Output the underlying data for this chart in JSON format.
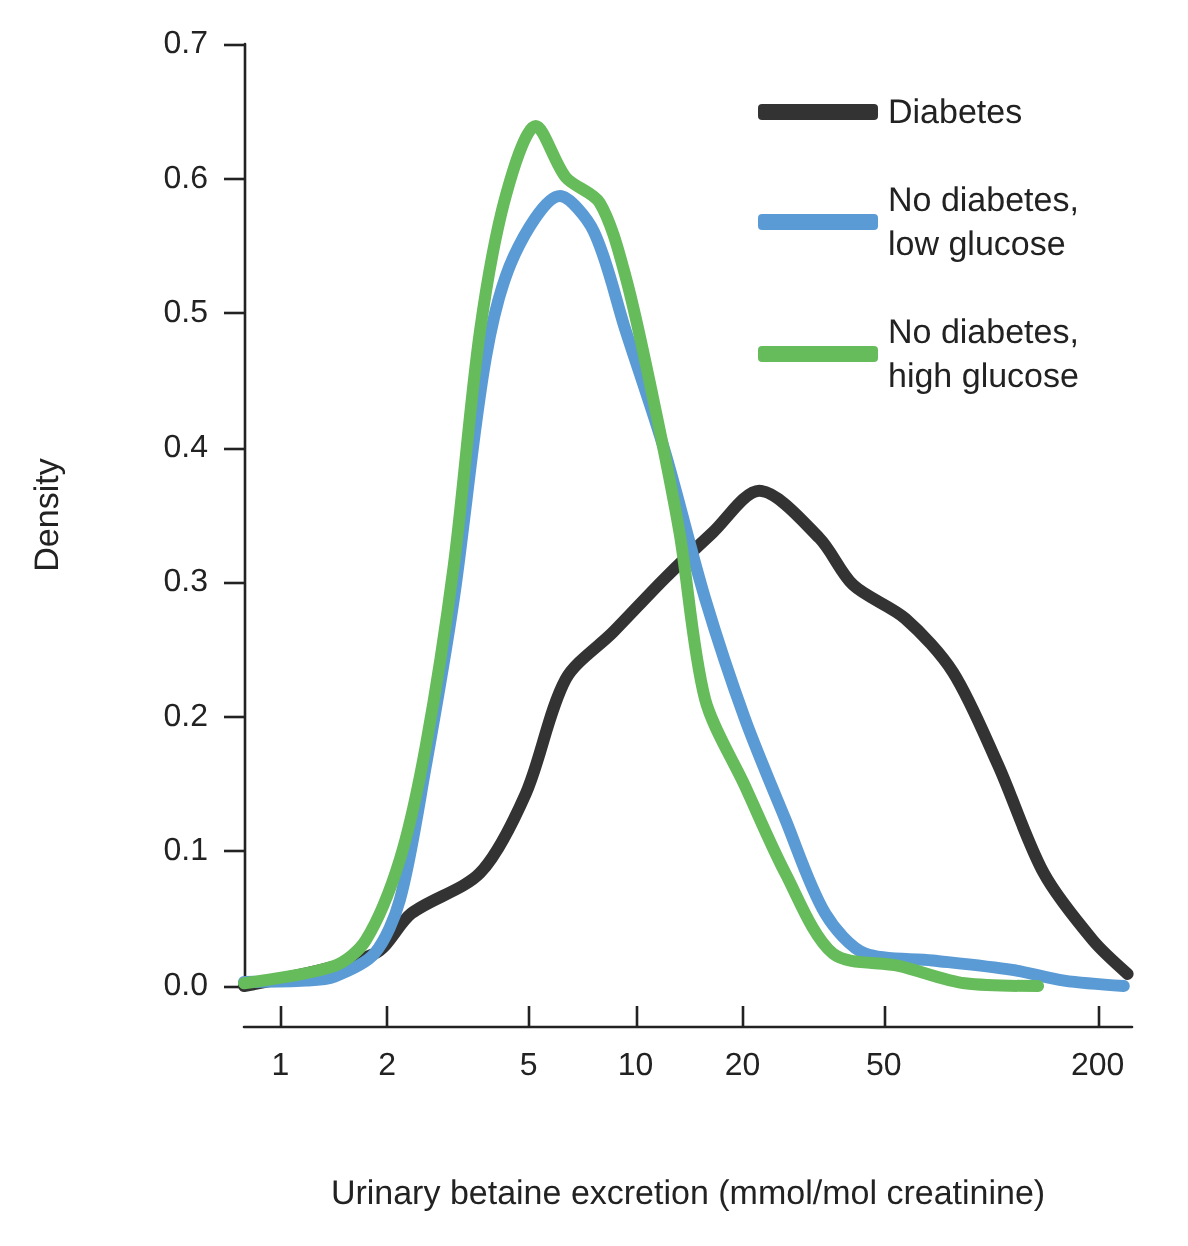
{
  "chart_data": {
    "type": "line",
    "xlabel": "Urinary betaine excretion (mmol/mol creatinine)",
    "ylabel": "Density",
    "log": "x",
    "xlim": [
      0.79,
      250
    ],
    "xticks": [
      1,
      2,
      5,
      10,
      20,
      50,
      200
    ],
    "ylim": [
      0,
      0.7
    ],
    "yticks": [
      {
        "value": 0,
        "label": "0.0"
      },
      {
        "value": 0.1,
        "label": "0.1"
      },
      {
        "value": 0.2,
        "label": "0.2"
      },
      {
        "value": 0.3,
        "label": "0.3"
      },
      {
        "value": 0.4,
        "label": "0.4"
      },
      {
        "value": 0.5,
        "label": "0.5"
      },
      {
        "value": 0.6,
        "label": "0.6"
      },
      {
        "value": 0.7,
        "label": "0.7"
      }
    ],
    "grid": false,
    "legend": "top right",
    "marker": "none",
    "line_style": "solid",
    "series": [
      {
        "name": "Diabetes",
        "color": "#333333",
        "x": [
          0.79,
          1.84,
          2.34,
          3.65,
          4.91,
          6.36,
          8.65,
          12.1,
          16.5,
          22.3,
          32.9,
          41,
          57.5,
          78.4,
          105,
          141,
          194,
          243
        ],
        "values": [
          0,
          0.024,
          0.054,
          0.084,
          0.143,
          0.228,
          0.263,
          0.303,
          0.337,
          0.368,
          0.333,
          0.298,
          0.273,
          0.233,
          0.164,
          0.084,
          0.034,
          0.009
        ]
      },
      {
        "name": "No diabetes, low glucose",
        "color": "#5b9bd5",
        "x": [
          0.79,
          1.18,
          1.42,
          1.84,
          2.17,
          2.57,
          3.08,
          3.79,
          4.54,
          6.13,
          7.62,
          9.38,
          12.1,
          15.7,
          20.3,
          26.4,
          34.2,
          44.4,
          68.6,
          115,
          161,
          237
        ],
        "values": [
          0.003,
          0.004,
          0.007,
          0.024,
          0.064,
          0.164,
          0.288,
          0.467,
          0.542,
          0.587,
          0.561,
          0.487,
          0.397,
          0.288,
          0.199,
          0.124,
          0.054,
          0.024,
          0.019,
          0.012,
          0.004,
          0
        ]
      },
      {
        "name": "No diabetes, high glucose",
        "color": "#66bb5a",
        "x": [
          0.79,
          1.42,
          1.74,
          2.17,
          2.57,
          3.08,
          3.65,
          4.31,
          5.24,
          6.36,
          7.93,
          9.38,
          11.2,
          13.3,
          15.7,
          20.3,
          26.4,
          36,
          55.1,
          84.6,
          136
        ],
        "values": [
          0.002,
          0.015,
          0.034,
          0.094,
          0.179,
          0.313,
          0.487,
          0.587,
          0.639,
          0.601,
          0.582,
          0.527,
          0.437,
          0.337,
          0.213,
          0.149,
          0.084,
          0.024,
          0.015,
          0.002,
          0
        ]
      }
    ]
  }
}
